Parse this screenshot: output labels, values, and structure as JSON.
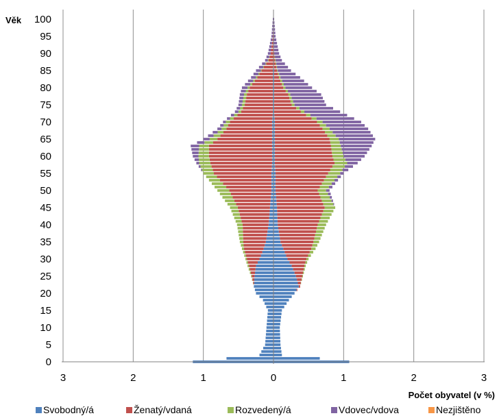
{
  "chart_data": {
    "type": "bar",
    "orientation": "horizontal-pyramid",
    "xlabel": "Počet obyvatel (v %)",
    "ylabel": "Věk",
    "xlim": [
      -3,
      3
    ],
    "ylim": [
      0,
      100
    ],
    "x_ticks": [
      -3,
      -2,
      -1,
      0,
      1,
      2,
      3
    ],
    "x_tick_labels": [
      "3",
      "2",
      "1",
      "0",
      "1",
      "2",
      "3"
    ],
    "y_ticks": [
      0,
      5,
      10,
      15,
      20,
      25,
      30,
      35,
      40,
      45,
      50,
      55,
      60,
      65,
      70,
      75,
      80,
      85,
      90,
      95,
      100
    ],
    "y_tick_labels": [
      "0",
      "5",
      "10",
      "15",
      "20",
      "25",
      "30",
      "35",
      "40",
      "45",
      "50",
      "55",
      "60",
      "65",
      "70",
      "75",
      "80",
      "85",
      "90",
      "95",
      "100"
    ],
    "vertical_grid": true,
    "legend_position": "bottom",
    "series": [
      {
        "name": "Svobodný/á",
        "color": "#4f81bd"
      },
      {
        "name": "Ženatý/vdaná",
        "color": "#c0504d"
      },
      {
        "name": "Rozvedený/á",
        "color": "#9bbb59"
      },
      {
        "name": "Vdovec/vdova",
        "color": "#8064a2"
      },
      {
        "name": "Nezjištěno",
        "color": "#f79646"
      }
    ],
    "anchors": {
      "ages": [
        0,
        1,
        2,
        5,
        10,
        15,
        18,
        20,
        22,
        25,
        28,
        30,
        33,
        35,
        40,
        45,
        50,
        55,
        58,
        60,
        63,
        65,
        68,
        70,
        73,
        75,
        78,
        80,
        83,
        85,
        88,
        90,
        95,
        100
      ],
      "left_total": [
        1.15,
        0.67,
        0.2,
        0.12,
        0.1,
        0.08,
        0.15,
        0.25,
        0.28,
        0.32,
        0.37,
        0.4,
        0.45,
        0.48,
        0.52,
        0.62,
        0.8,
        1.0,
        1.1,
        1.15,
        1.18,
        1.0,
        0.8,
        0.72,
        0.55,
        0.5,
        0.48,
        0.45,
        0.32,
        0.25,
        0.12,
        0.08,
        0.03,
        0.01
      ],
      "left_single": [
        1.15,
        0.67,
        0.2,
        0.12,
        0.1,
        0.08,
        0.15,
        0.25,
        0.28,
        0.27,
        0.25,
        0.2,
        0.14,
        0.11,
        0.07,
        0.05,
        0.03,
        0.03,
        0.02,
        0.02,
        0.02,
        0.02,
        0.02,
        0.02,
        0.01,
        0.01,
        0.01,
        0.01,
        0.01,
        0.01,
        0.0,
        0.0,
        0.0,
        0.0
      ],
      "left_married": [
        0,
        0,
        0,
        0,
        0,
        0,
        0,
        0,
        0,
        0.04,
        0.1,
        0.18,
        0.28,
        0.32,
        0.37,
        0.46,
        0.6,
        0.82,
        0.88,
        0.9,
        0.9,
        0.78,
        0.65,
        0.6,
        0.45,
        0.4,
        0.37,
        0.33,
        0.22,
        0.16,
        0.07,
        0.04,
        0.01,
        0.0
      ],
      "left_divorced": [
        0,
        0,
        0,
        0,
        0,
        0,
        0,
        0,
        0,
        0.01,
        0.02,
        0.02,
        0.03,
        0.05,
        0.08,
        0.11,
        0.17,
        0.15,
        0.16,
        0.15,
        0.14,
        0.11,
        0.07,
        0.06,
        0.04,
        0.04,
        0.04,
        0.03,
        0.02,
        0.01,
        0.01,
        0.0,
        0.0,
        0.0
      ],
      "right_total": [
        1.08,
        0.66,
        0.12,
        0.1,
        0.09,
        0.12,
        0.22,
        0.3,
        0.38,
        0.42,
        0.46,
        0.5,
        0.6,
        0.65,
        0.75,
        0.88,
        0.8,
        1.0,
        1.2,
        1.3,
        1.4,
        1.45,
        1.35,
        1.25,
        0.95,
        0.75,
        0.68,
        0.55,
        0.38,
        0.25,
        0.12,
        0.08,
        0.03,
        0.01
      ],
      "right_single": [
        1.08,
        0.66,
        0.12,
        0.1,
        0.09,
        0.12,
        0.22,
        0.3,
        0.36,
        0.32,
        0.26,
        0.2,
        0.14,
        0.1,
        0.06,
        0.05,
        0.03,
        0.03,
        0.02,
        0.02,
        0.02,
        0.02,
        0.02,
        0.02,
        0.01,
        0.01,
        0.01,
        0.01,
        0.01,
        0.01,
        0.0,
        0.0,
        0.0,
        0.0
      ],
      "right_married": [
        0,
        0,
        0,
        0,
        0,
        0,
        0,
        0,
        0.02,
        0.09,
        0.18,
        0.27,
        0.4,
        0.47,
        0.57,
        0.68,
        0.6,
        0.75,
        0.85,
        0.82,
        0.8,
        0.78,
        0.68,
        0.6,
        0.38,
        0.25,
        0.2,
        0.13,
        0.07,
        0.04,
        0.02,
        0.01,
        0.0,
        0.0
      ],
      "right_divorced": [
        0,
        0,
        0,
        0,
        0,
        0,
        0,
        0,
        0,
        0.01,
        0.02,
        0.03,
        0.06,
        0.08,
        0.12,
        0.15,
        0.12,
        0.17,
        0.18,
        0.16,
        0.14,
        0.13,
        0.1,
        0.08,
        0.05,
        0.04,
        0.03,
        0.03,
        0.02,
        0.01,
        0.01,
        0.0,
        0.0,
        0.0
      ]
    }
  }
}
